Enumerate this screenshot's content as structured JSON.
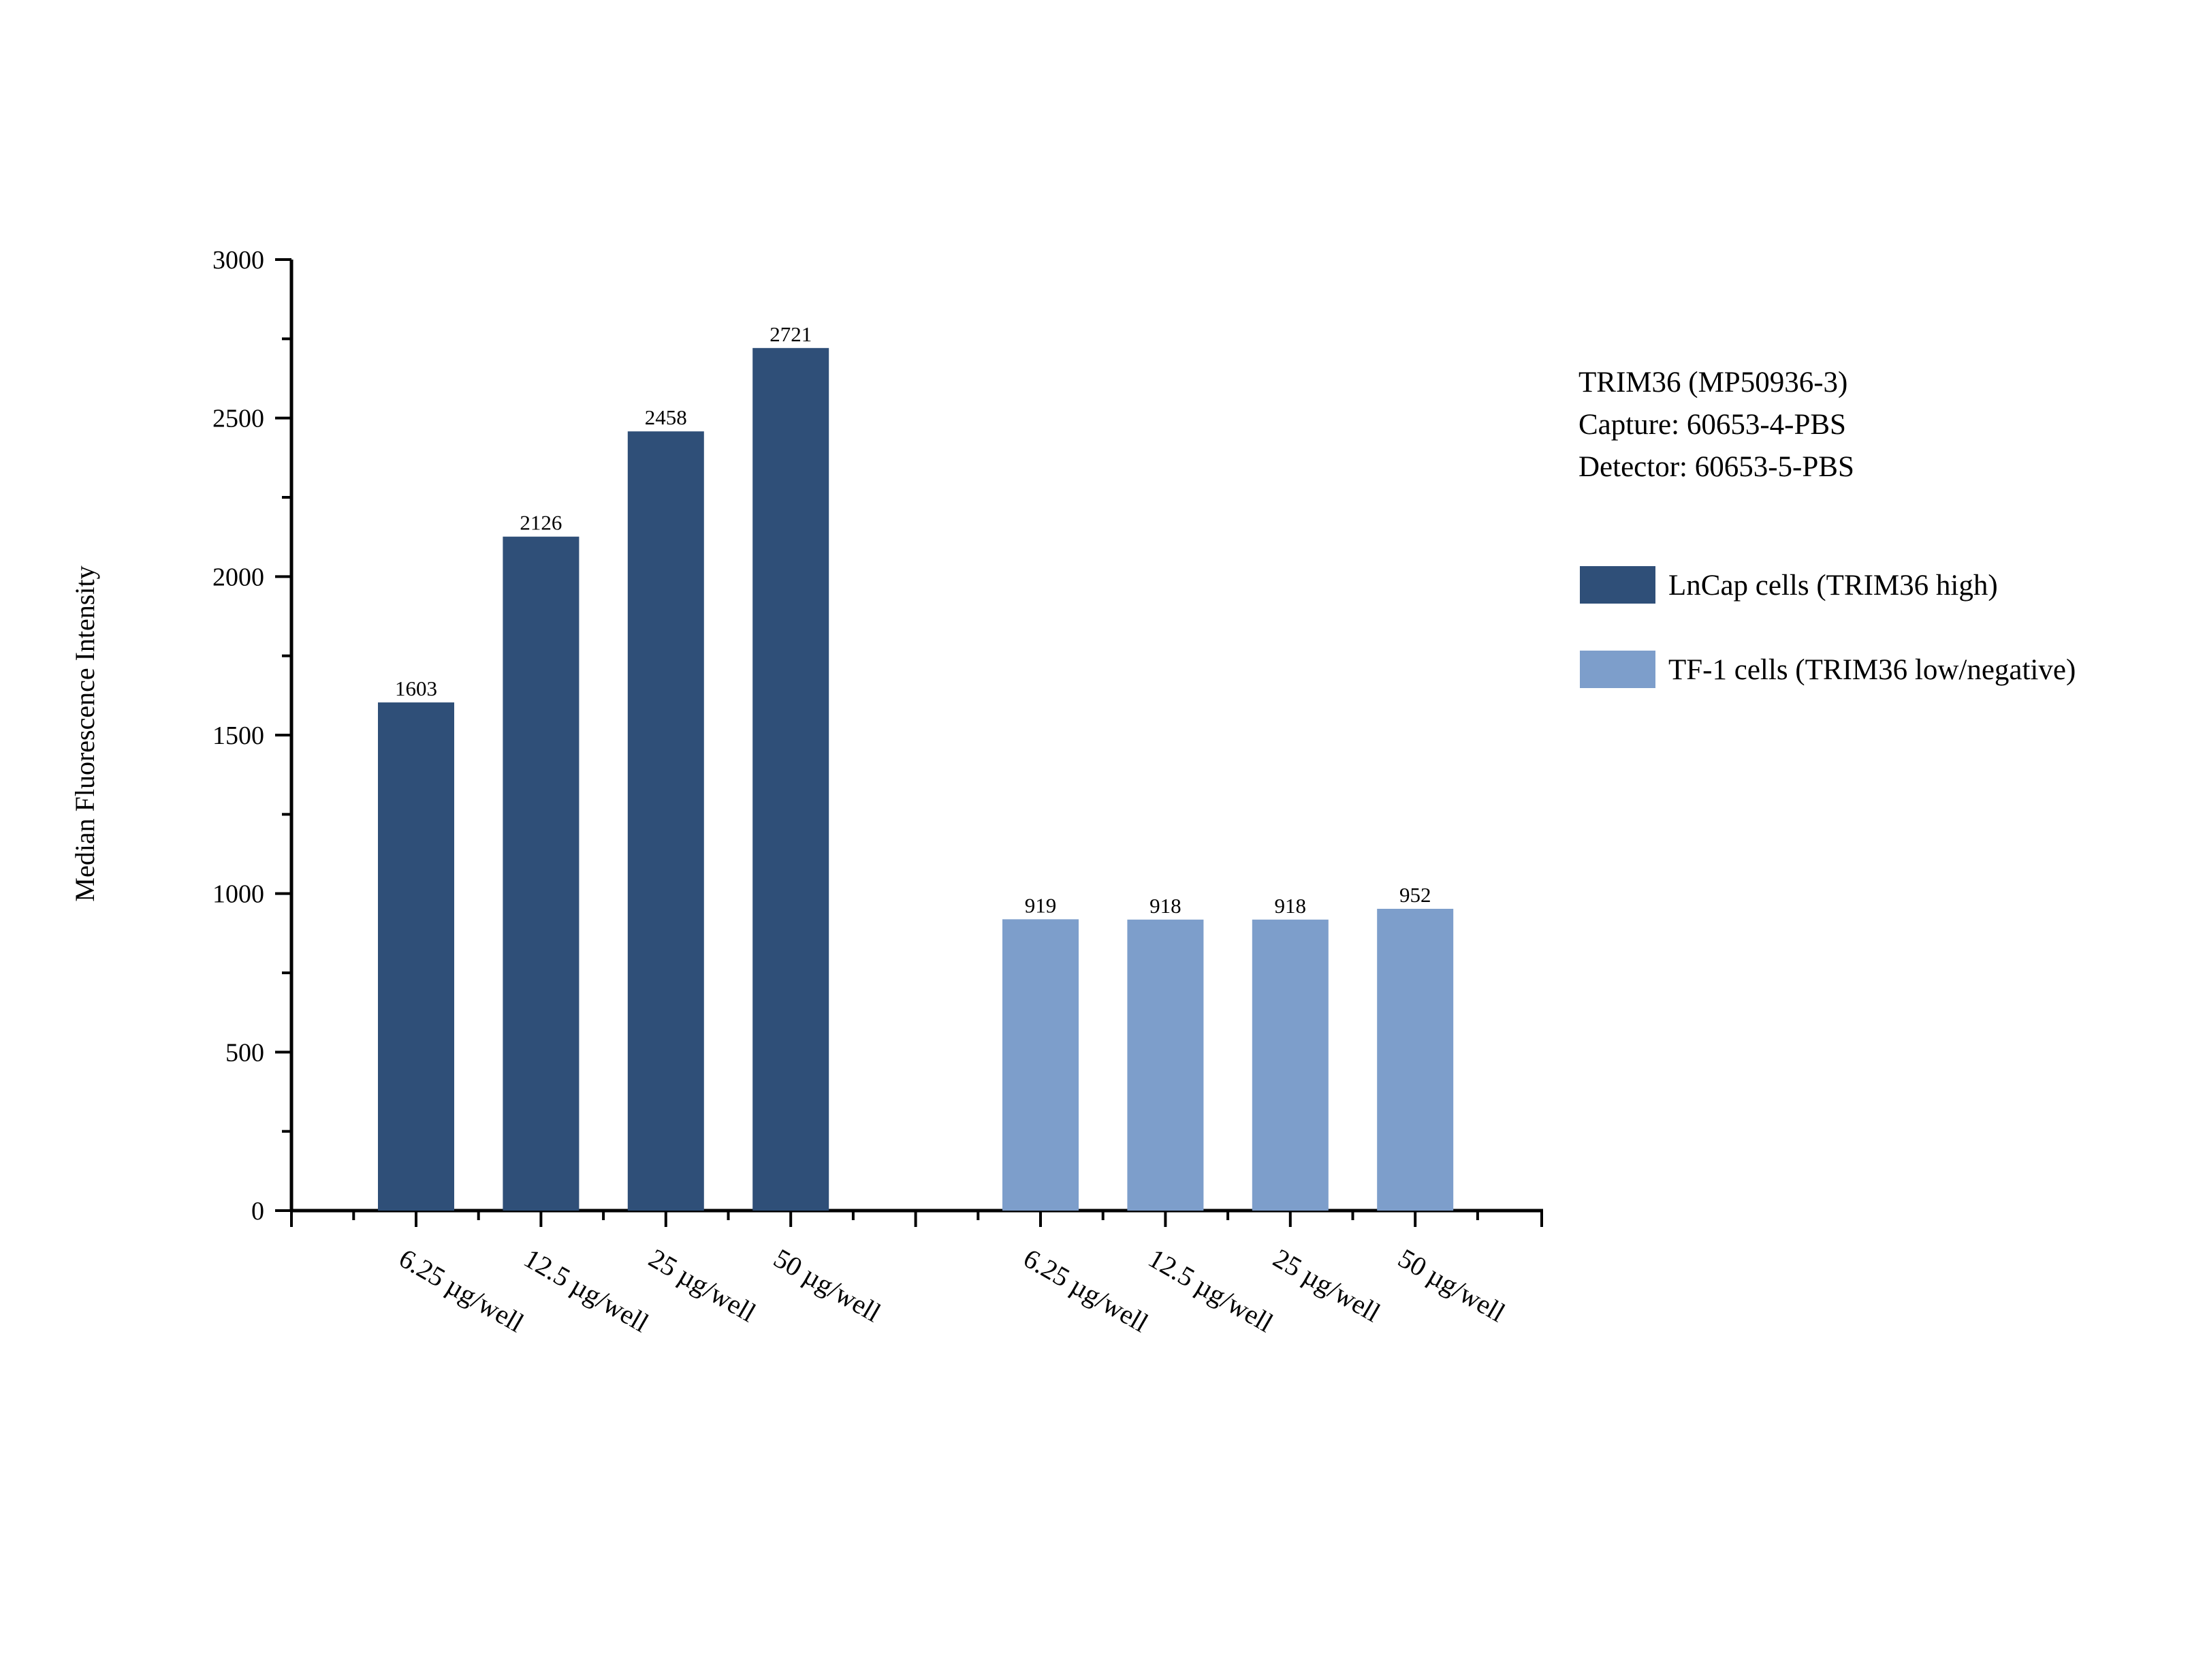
{
  "chart_data": {
    "type": "bar",
    "ylabel": "Median Fluorescence Intensity",
    "xlabel": "",
    "ylim": [
      0,
      3000
    ],
    "yticks": [
      0,
      500,
      1000,
      1500,
      2000,
      2500,
      3000
    ],
    "grid": false,
    "groups": [
      {
        "name": "LnCap cells (TRIM36 high)",
        "color": "#2f4f78",
        "categories": [
          "6.25 µg/well",
          "12.5 µg/well",
          "25 µg/well",
          "50 µg/well"
        ],
        "values": [
          1603,
          2126,
          2458,
          2721
        ]
      },
      {
        "name": "TF-1 cells (TRIM36 low/negative)",
        "color": "#7d9ecb",
        "categories": [
          "6.25 µg/well",
          "12.5 µg/well",
          "25 µg/well",
          "50 µg/well"
        ],
        "values": [
          919,
          918,
          918,
          952
        ]
      }
    ],
    "annotation": [
      "TRIM36 (MP50936-3)",
      "Capture: 60653-4-PBS",
      "Detector: 60653-5-PBS"
    ],
    "legend_position": "right"
  }
}
